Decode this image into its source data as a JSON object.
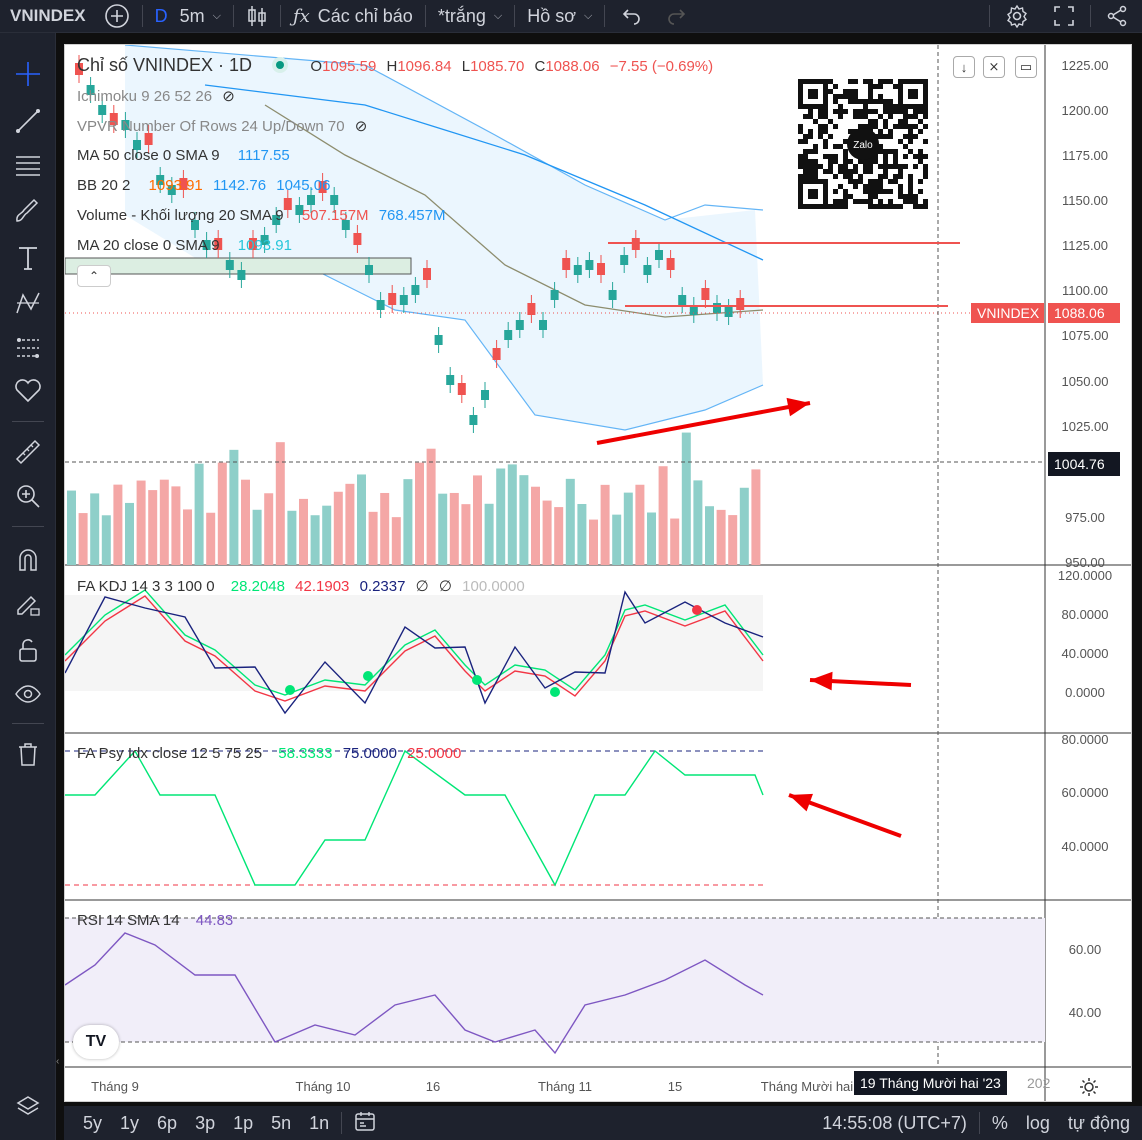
{
  "toolbar": {
    "symbol": "VNINDEX",
    "interval_prefix": "D",
    "interval": "5m",
    "indicators": "Các chỉ báo",
    "template": "*trắng",
    "profile": "Hồ sơ"
  },
  "legend": {
    "title": "Chỉ số VNINDEX · 1D",
    "ohlc": {
      "o_label": "O",
      "o": "1095.59",
      "h_label": "H",
      "h": "1096.84",
      "l_label": "L",
      "l": "1085.70",
      "c_label": "C",
      "c": "1088.06",
      "change": "−7.55 (−0.69%)"
    },
    "ichimoku": "Ichimoku 9 26 52 26",
    "vpvr": "VPVR Number Of Rows 24 Up/Down 70",
    "ma50": {
      "label": "MA 50 close 0 SMA 9",
      "value": "1117.55"
    },
    "bb": {
      "label": "BB 20 2",
      "v1": "1093.91",
      "v2": "1142.76",
      "v3": "1045.06"
    },
    "volume": {
      "label": "Volume - Khối lượng 20 SMA 9",
      "v1": "507.157M",
      "v2": "768.457M"
    },
    "ma20": {
      "label": "MA 20 close 0 SMA 9",
      "value": "1093.91"
    }
  },
  "price_scale": [
    "1225.00",
    "1200.00",
    "1175.00",
    "1150.00",
    "1125.00",
    "1100.00",
    "1075.00",
    "1050.00",
    "1025.00",
    "975.00",
    "950.00"
  ],
  "price_tags": {
    "symbol": "VNINDEX",
    "last": "1088.06",
    "crosshair": "1004.76"
  },
  "kdj": {
    "label": "FA KDJ 14 3 3 100 0",
    "k": "28.2048",
    "d": "42.1903",
    "j": "0.2337",
    "x1": "∅",
    "x2": "∅",
    "x3": "100.0000",
    "scale": [
      "120.0000",
      "80.0000",
      "40.0000",
      "0.0000"
    ]
  },
  "psy": {
    "label": "FA Psy Idx close 12 5 75 25",
    "v1": "58.3333",
    "v2": "75.0000",
    "v3": "25.0000",
    "scale": [
      "80.0000",
      "60.0000",
      "40.0000"
    ]
  },
  "rsi": {
    "label": "RSI 14 SMA 14",
    "value": "44.83",
    "scale": [
      "60.00",
      "40.00"
    ]
  },
  "time_axis": [
    "Tháng 9",
    "Tháng 10",
    "16",
    "Tháng 11",
    "15",
    "Tháng Mười hai"
  ],
  "time_tag": "19 Tháng Mười hai '23",
  "time_tag_tail": "202",
  "bottom": {
    "ranges": [
      "5y",
      "1y",
      "6p",
      "3p",
      "1p",
      "5n",
      "1n"
    ],
    "clock": "14:55:08 (UTC+7)",
    "percent": "%",
    "log": "log",
    "auto": "tự động"
  },
  "colors": {
    "up": "#26a69a",
    "down": "#ef5350",
    "accent": "#2962ff",
    "bb_fill": "#e3f2fd"
  }
}
